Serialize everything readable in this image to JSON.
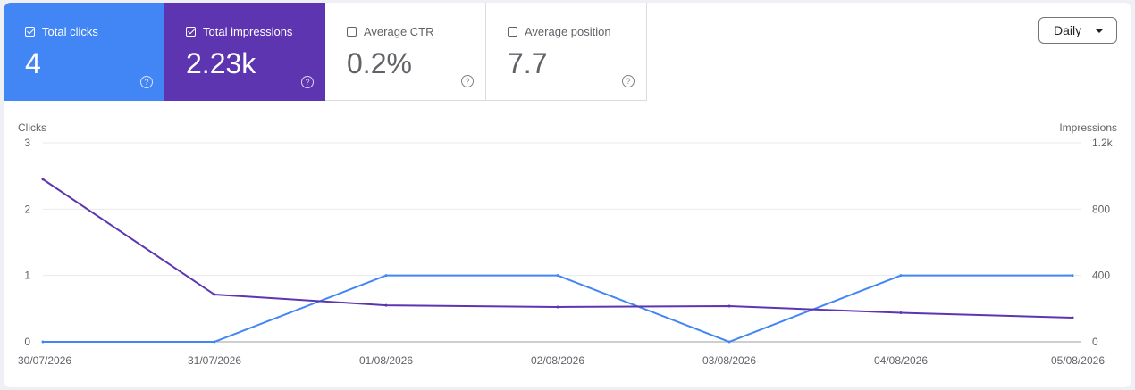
{
  "metrics": [
    {
      "label": "Total clicks",
      "value": "4",
      "checked": true
    },
    {
      "label": "Total impressions",
      "value": "2.23k",
      "checked": true
    },
    {
      "label": "Average CTR",
      "value": "0.2%",
      "checked": false
    },
    {
      "label": "Average position",
      "value": "7.7",
      "checked": false
    }
  ],
  "period_select": {
    "value": "Daily"
  },
  "chart_data": {
    "type": "line",
    "x": [
      "30/07/2026",
      "31/07/2026",
      "01/08/2026",
      "02/08/2026",
      "03/08/2026",
      "04/08/2026",
      "05/08/2026"
    ],
    "series": [
      {
        "name": "Total clicks",
        "axis": "left",
        "color": "#4285f4",
        "values": [
          0,
          0,
          1,
          1,
          0,
          1,
          1
        ]
      },
      {
        "name": "Total impressions",
        "axis": "right",
        "color": "#5e35b1",
        "values": [
          980,
          285,
          220,
          210,
          215,
          175,
          145
        ]
      }
    ],
    "ylabel_left": "Clicks",
    "ylabel_right": "Impressions",
    "ylim_left": [
      0,
      3
    ],
    "ylim_right": [
      0,
      1200
    ],
    "yticks_left": [
      "0",
      "1",
      "2",
      "3"
    ],
    "yticks_right": [
      "0",
      "400",
      "800",
      "1.2k"
    ],
    "grid": true
  }
}
